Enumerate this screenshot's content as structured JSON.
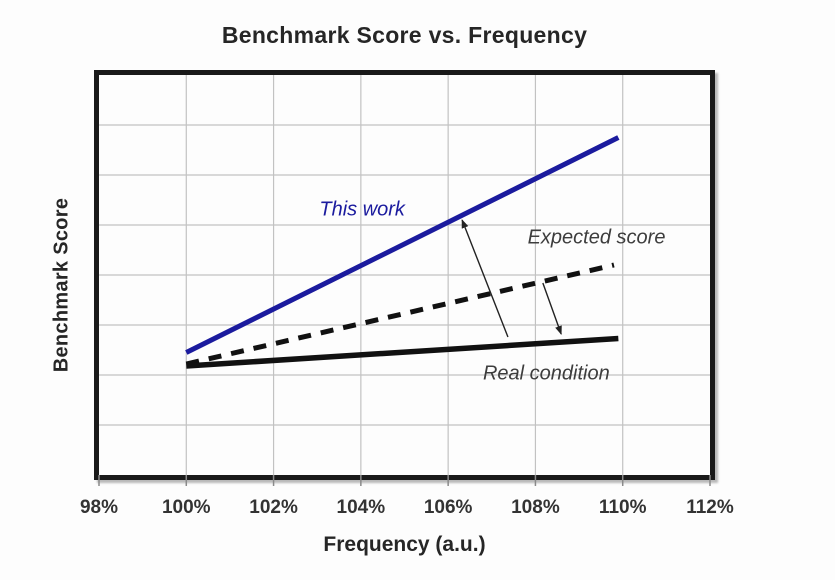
{
  "chart_data": {
    "type": "line",
    "title": "Benchmark Score vs. Frequency",
    "xlabel": "Frequency (a.u.)",
    "ylabel": "Benchmark Score",
    "xlim": [
      98,
      112
    ],
    "ylim": [
      0,
      8
    ],
    "grid": true,
    "y_tick_labels_shown": false,
    "x_ticks": [
      "98%",
      "100%",
      "102%",
      "104%",
      "106%",
      "108%",
      "110%",
      "112%"
    ],
    "x_tick_values": [
      98,
      100,
      102,
      104,
      106,
      108,
      110,
      112
    ],
    "y_units_note": "y axis unlabeled; values in arbitrary gridline units (0 = bottom axis, 8 = top)",
    "colors": {
      "this_work_blue": "#1b1b9e",
      "black_line": "#111111",
      "grid": "#c2c2c2",
      "border": "#1a1a1a",
      "arrow": "#222222",
      "tick": "#8a8a8a",
      "text_dark": "#262626"
    },
    "series": [
      {
        "name": "This work",
        "color": "#1b1b9e",
        "style": "solid",
        "width": 5,
        "x": [
          100,
          109.9
        ],
        "y": [
          2.45,
          6.75
        ]
      },
      {
        "name": "Expected score",
        "color": "#111111",
        "style": "dashed",
        "width": 5,
        "x": [
          100,
          109.8
        ],
        "y": [
          2.22,
          4.2
        ]
      },
      {
        "name": "Real condition",
        "color": "#111111",
        "style": "solid",
        "width": 5.5,
        "x": [
          100,
          109.9
        ],
        "y": [
          2.18,
          2.73
        ]
      }
    ],
    "annotations": {
      "labels": [
        {
          "text": "This work",
          "x": 104.03,
          "y": 5.3,
          "color": "#1b1b9e"
        },
        {
          "text": "Expected score",
          "x": 109.4,
          "y": 4.74,
          "color": "#3d3d3d"
        },
        {
          "text": "Real condition",
          "x": 108.25,
          "y": 2.02,
          "color": "#3d3d3d"
        }
      ],
      "arrows": [
        {
          "from": [
            107.37,
            2.76
          ],
          "to": [
            106.32,
            5.1
          ]
        },
        {
          "from": [
            108.17,
            3.84
          ],
          "to": [
            108.59,
            2.82
          ]
        }
      ]
    }
  }
}
